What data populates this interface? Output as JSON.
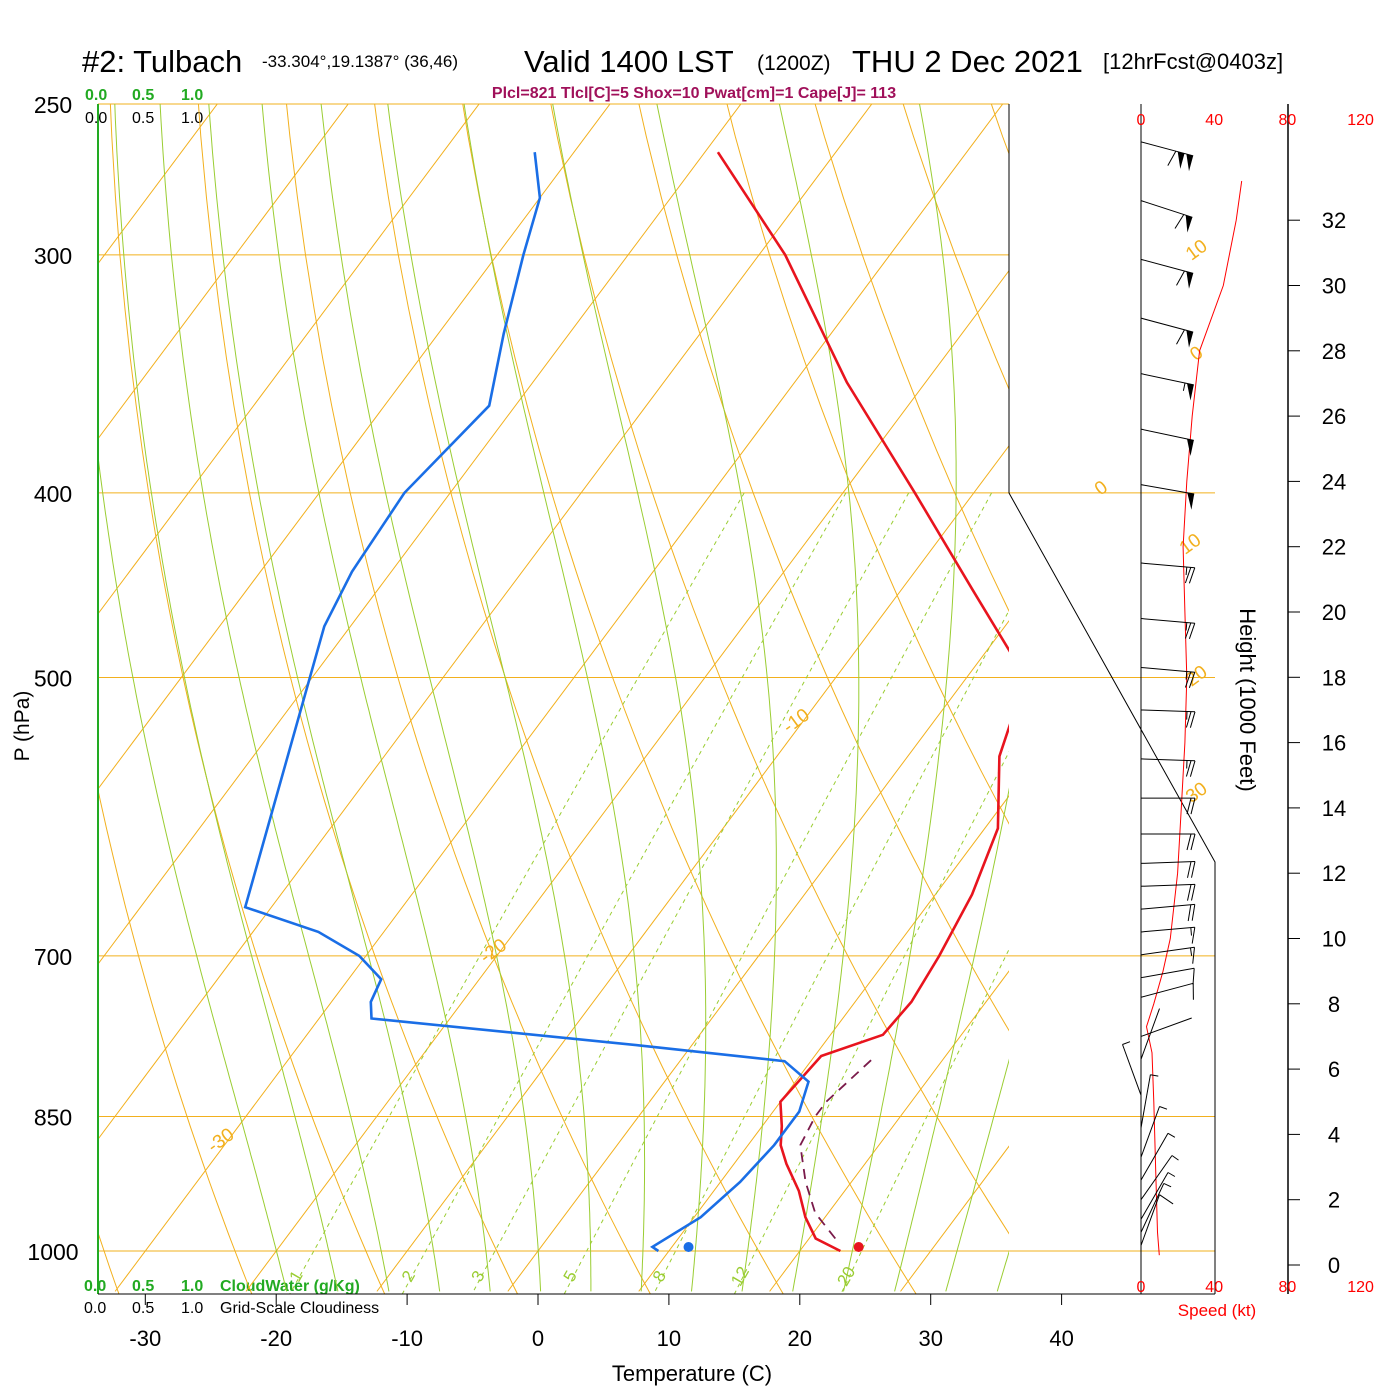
{
  "header": {
    "station": "#2: Tulbach",
    "coords": "-33.304°,19.1387° (36,46)",
    "valid": "Valid 1400 LST",
    "zulu": "(1200Z)",
    "date": "THU 2 Dec 2021",
    "forecast": "[12hrFcst@0403z]",
    "indices": "Plcl=821 Tlcl[C]=5 Shox=10 Pwat[cm]=1 Cape[J]= 113"
  },
  "cloud_scale": {
    "ticks": [
      "0.0",
      "0.5",
      "1.0"
    ],
    "bottom_green_label": "CloudWater (g/Kg)",
    "bottom_black_label": "Grid-Scale Cloudiness"
  },
  "colors": {
    "isotherm": "#f2b01e",
    "dry_adiabat": "#9acd32",
    "mixing_ratio": "#9acd32",
    "temperature": "#e8141e",
    "dewpoint": "#1a6ee6",
    "parcel": "#7a1a4a",
    "indices_text": "#a0105a",
    "cloudwater": "#22aa22",
    "speed": "#ff0000"
  },
  "chart_data": {
    "type": "line",
    "subtype": "skew-T log-P sounding",
    "xlabel": "Temperature (C)",
    "ylabel": "P (hPa)",
    "right_ylabel": "Height (1000 Feet)",
    "speed_label": "Speed (kt)",
    "x_ticks": [
      -30,
      -20,
      -10,
      0,
      10,
      20,
      30,
      40
    ],
    "x_tick_labels": [
      "-30",
      "-20",
      "-10",
      "0",
      "10",
      "20",
      "30",
      "40"
    ],
    "p_ticks": [
      250,
      300,
      400,
      500,
      700,
      850,
      1000
    ],
    "p_tick_labels": [
      "250",
      "300",
      "400",
      "500",
      "700",
      "850",
      "1000"
    ],
    "p_range": [
      250,
      1050
    ],
    "height_ticks": [
      0,
      2,
      4,
      6,
      8,
      10,
      12,
      14,
      16,
      18,
      20,
      22,
      24,
      26,
      28,
      30,
      32
    ],
    "height_tick_labels": [
      "0",
      "2",
      "4",
      "6",
      "8",
      "10",
      "12",
      "14",
      "16",
      "18",
      "20",
      "22",
      "24",
      "26",
      "28",
      "30",
      "32"
    ],
    "speed_ticks": [
      0,
      40,
      80,
      120
    ],
    "speed_tick_labels": [
      "0",
      "40",
      "80",
      "120"
    ],
    "isotherm_labels": [
      {
        "text": "10",
        "t": 10,
        "p": 300
      },
      {
        "text": "0",
        "t": 0,
        "p": 400
      },
      {
        "text": "-10",
        "t": -10,
        "p": 530
      },
      {
        "text": "-20",
        "t": -20,
        "p": 700
      },
      {
        "text": "-30",
        "t": -30,
        "p": 880
      },
      {
        "text": "0",
        "t": 0,
        "p": 340
      },
      {
        "text": "10",
        "t": 10,
        "p": 428
      },
      {
        "text": "20",
        "t": 20,
        "p": 502
      },
      {
        "text": "30",
        "t": 30,
        "p": 578
      }
    ],
    "mixing_ratio_labels": [
      "1",
      "2",
      "3",
      "5",
      "8",
      "12",
      "20"
    ],
    "mixing_ratios": [
      1,
      2,
      3,
      5,
      8,
      12,
      20
    ],
    "series": [
      {
        "name": "temperature",
        "points": [
          [
            23.1,
            1000
          ],
          [
            20.5,
            985
          ],
          [
            18.5,
            960
          ],
          [
            16.5,
            930
          ],
          [
            14.0,
            900
          ],
          [
            12.5,
            880
          ],
          [
            11.5,
            860
          ],
          [
            10.0,
            835
          ],
          [
            10.5,
            790
          ],
          [
            14.0,
            770
          ],
          [
            14.3,
            740
          ],
          [
            13.8,
            700
          ],
          [
            12.8,
            650
          ],
          [
            11.0,
            600
          ],
          [
            7.0,
            550
          ],
          [
            4.5,
            500
          ],
          [
            -4.5,
            450
          ],
          [
            -14.5,
            400
          ],
          [
            -26.0,
            350
          ],
          [
            -38.0,
            300
          ],
          [
            -49.0,
            265
          ]
        ]
      },
      {
        "name": "dewpoint",
        "points": [
          [
            9.2,
            1000
          ],
          [
            8.5,
            995
          ],
          [
            10.5,
            960
          ],
          [
            11.5,
            920
          ],
          [
            12.0,
            880
          ],
          [
            12.0,
            845
          ],
          [
            11.0,
            815
          ],
          [
            8.0,
            795
          ],
          [
            -4.0,
            780
          ],
          [
            -26.0,
            755
          ],
          [
            -27.0,
            740
          ],
          [
            -27.5,
            720
          ],
          [
            -30.5,
            700
          ],
          [
            -35.0,
            680
          ],
          [
            -42.0,
            660
          ],
          [
            -52.0,
            470
          ],
          [
            -53.0,
            440
          ],
          [
            -53.5,
            400
          ],
          [
            -52.0,
            360
          ],
          [
            -55.0,
            330
          ],
          [
            -58.0,
            300
          ],
          [
            -60.0,
            280
          ],
          [
            -63.0,
            265
          ]
        ]
      },
      {
        "name": "parcel",
        "points": [
          [
            22.0,
            985
          ],
          [
            19.0,
            955
          ],
          [
            16.5,
            920
          ],
          [
            14.0,
            880
          ],
          [
            13.5,
            850
          ],
          [
            13.5,
            835
          ],
          [
            14.6,
            792
          ]
        ]
      }
    ],
    "surface_temperature": {
      "t": 24.5,
      "p": 1000
    },
    "surface_dewpoint": {
      "t": 11.5,
      "p": 1000
    },
    "wind_speed_profile": [
      [
        10,
        0.3
      ],
      [
        9,
        1
      ],
      [
        8,
        3
      ],
      [
        7,
        5
      ],
      [
        6,
        6.5
      ],
      [
        3,
        7.3
      ],
      [
        7,
        8
      ],
      [
        12,
        9
      ],
      [
        16,
        10
      ],
      [
        20,
        12
      ],
      [
        22,
        14
      ],
      [
        24,
        16
      ],
      [
        25,
        18
      ],
      [
        24,
        20
      ],
      [
        23,
        22
      ],
      [
        25,
        24
      ],
      [
        28,
        26
      ],
      [
        32,
        28
      ],
      [
        45,
        30
      ],
      [
        52,
        32
      ],
      [
        55,
        33.2
      ]
    ],
    "wind_barbs": [
      {
        "h": 0.6,
        "dir": 200,
        "kt": 8
      },
      {
        "h": 1.0,
        "dir": 205,
        "kt": 7
      },
      {
        "h": 1.4,
        "dir": 210,
        "kt": 6
      },
      {
        "h": 2.0,
        "dir": 215,
        "kt": 5
      },
      {
        "h": 2.6,
        "dir": 210,
        "kt": 5
      },
      {
        "h": 3.3,
        "dir": 200,
        "kt": 5
      },
      {
        "h": 4.2,
        "dir": 190,
        "kt": 4
      },
      {
        "h": 5.2,
        "dir": 160,
        "kt": 3
      },
      {
        "h": 6.3,
        "dir": 200,
        "kt": 2
      },
      {
        "h": 7.0,
        "dir": 250,
        "kt": 2
      },
      {
        "h": 8.2,
        "dir": 255,
        "kt": 10
      },
      {
        "h": 8.8,
        "dir": 260,
        "kt": 12
      },
      {
        "h": 9.5,
        "dir": 262,
        "kt": 14
      },
      {
        "h": 10.2,
        "dir": 265,
        "kt": 16
      },
      {
        "h": 10.9,
        "dir": 265,
        "kt": 18
      },
      {
        "h": 11.6,
        "dir": 268,
        "kt": 20
      },
      {
        "h": 12.3,
        "dir": 268,
        "kt": 20
      },
      {
        "h": 13.2,
        "dir": 270,
        "kt": 22
      },
      {
        "h": 14.3,
        "dir": 270,
        "kt": 22
      },
      {
        "h": 15.5,
        "dir": 272,
        "kt": 24
      },
      {
        "h": 17.0,
        "dir": 272,
        "kt": 24
      },
      {
        "h": 18.3,
        "dir": 275,
        "kt": 25
      },
      {
        "h": 19.8,
        "dir": 275,
        "kt": 24
      },
      {
        "h": 21.5,
        "dir": 275,
        "kt": 23
      },
      {
        "h": 23.9,
        "dir": 280,
        "kt": 50
      },
      {
        "h": 25.6,
        "dir": 282,
        "kt": 50
      },
      {
        "h": 27.3,
        "dir": 282,
        "kt": 55
      },
      {
        "h": 29.0,
        "dir": 285,
        "kt": 58
      },
      {
        "h": 30.8,
        "dir": 285,
        "kt": 60
      },
      {
        "h": 32.6,
        "dir": 288,
        "kt": 62
      },
      {
        "h": 34.4,
        "dir": 285,
        "kt": 110
      }
    ]
  }
}
